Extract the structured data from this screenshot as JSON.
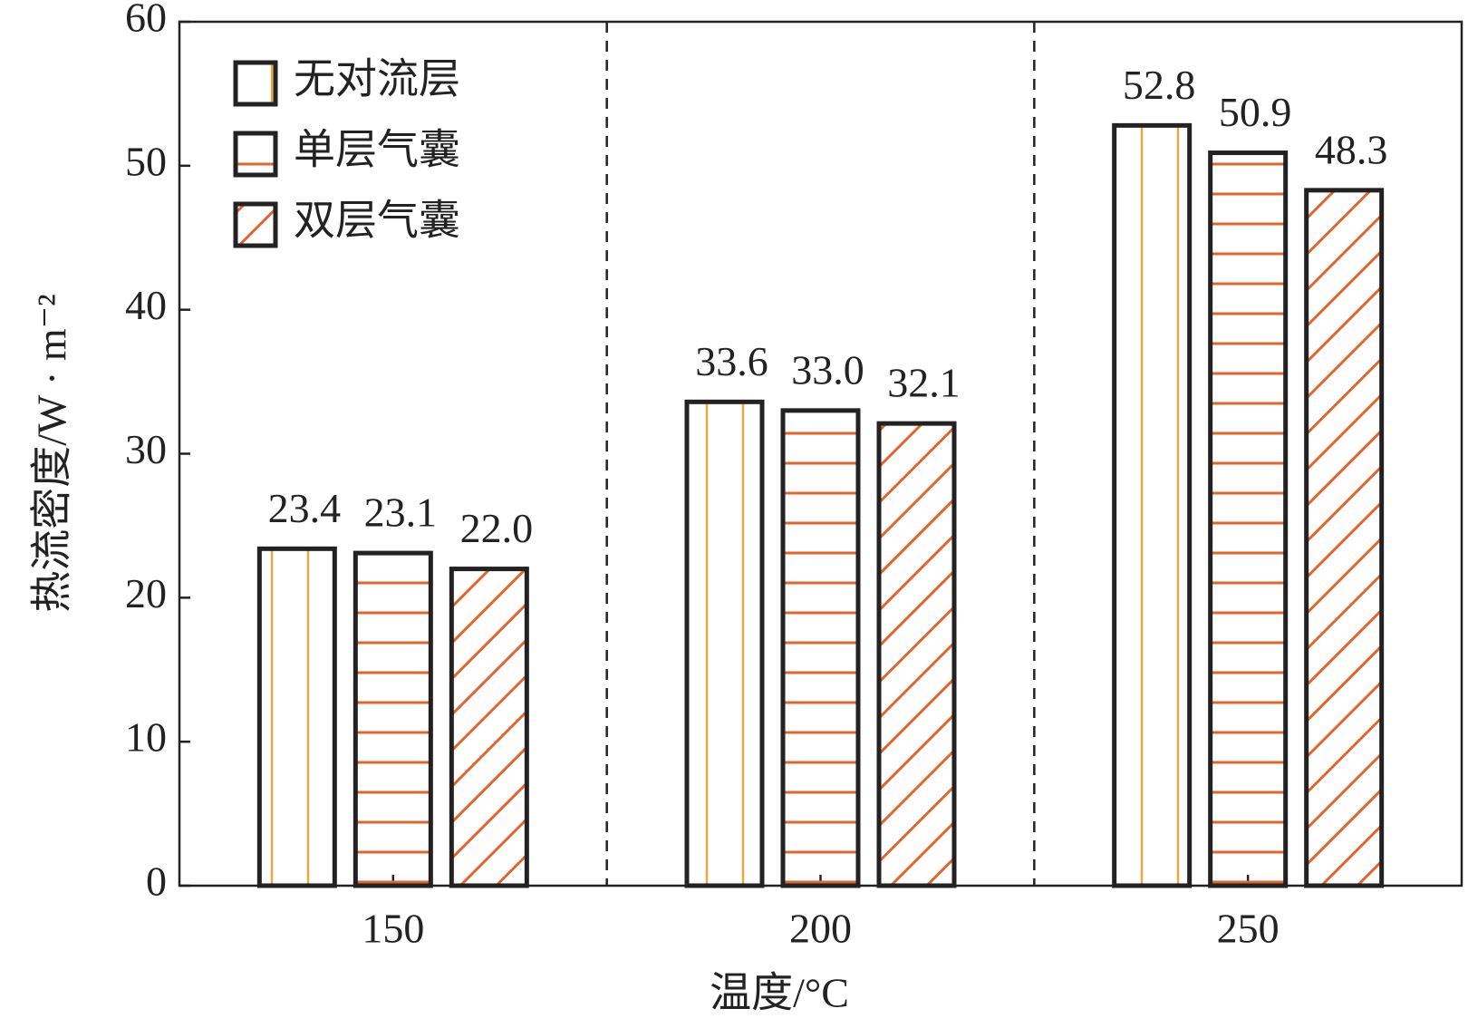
{
  "chart_data": {
    "type": "bar",
    "x_label": "温度/°C",
    "y_label": "热流密度/W · m⁻²",
    "categories": [
      "150",
      "200",
      "250"
    ],
    "series": [
      {
        "name": "无对流层",
        "color": "#f0a640",
        "pattern": "vertical",
        "values": [
          23.4,
          33.6,
          52.8
        ],
        "value_labels": [
          "23.4",
          "33.6",
          "52.8"
        ]
      },
      {
        "name": "单层气囊",
        "color": "#e0662e",
        "pattern": "horizontal",
        "values": [
          23.1,
          33.0,
          50.9
        ],
        "value_labels": [
          "23.1",
          "33.0",
          "50.9"
        ]
      },
      {
        "name": "双层气囊",
        "color": "#e0662e",
        "pattern": "diagonal",
        "values": [
          22.0,
          32.1,
          48.3
        ],
        "value_labels": [
          "22.0",
          "32.1",
          "48.3"
        ]
      }
    ],
    "ylim": [
      0,
      60
    ],
    "yticks": [
      0,
      10,
      20,
      30,
      40,
      50,
      60
    ],
    "legend": "upper left",
    "group_separators": true
  }
}
